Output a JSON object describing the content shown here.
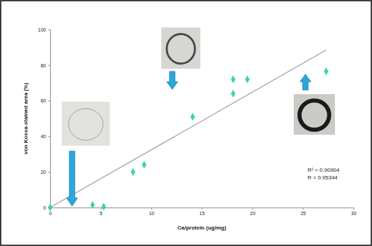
{
  "chart_data": {
    "type": "scatter",
    "x_label": "Ca/protein (ug/mg)",
    "y_label": "von Kossa-stained area (%)",
    "annotations": [
      "R² = 0.90904",
      "R = 0.95344"
    ],
    "xlim": [
      0,
      30
    ],
    "xticks": [
      0,
      5,
      10,
      15,
      20,
      25,
      30
    ],
    "ylim": [
      0,
      100
    ],
    "yticks": [
      0,
      20,
      40,
      60,
      80,
      100
    ],
    "grid": false,
    "series": [
      {
        "type": "scatter",
        "marker": "diamond",
        "color": "#3dd6a3",
        "x": [
          0,
          4.2,
          5.3,
          8.2,
          9.3,
          14.1,
          18.1,
          18.1,
          19.5,
          27.3
        ],
        "values": [
          0,
          1.5,
          0.5,
          20,
          24,
          51,
          64,
          72,
          72,
          76.5
        ]
      },
      {
        "type": "line",
        "line_style": "solid",
        "color": "#9a9a9a",
        "x": [
          0,
          27.3
        ],
        "values": [
          0,
          88.5
        ]
      }
    ]
  }
}
